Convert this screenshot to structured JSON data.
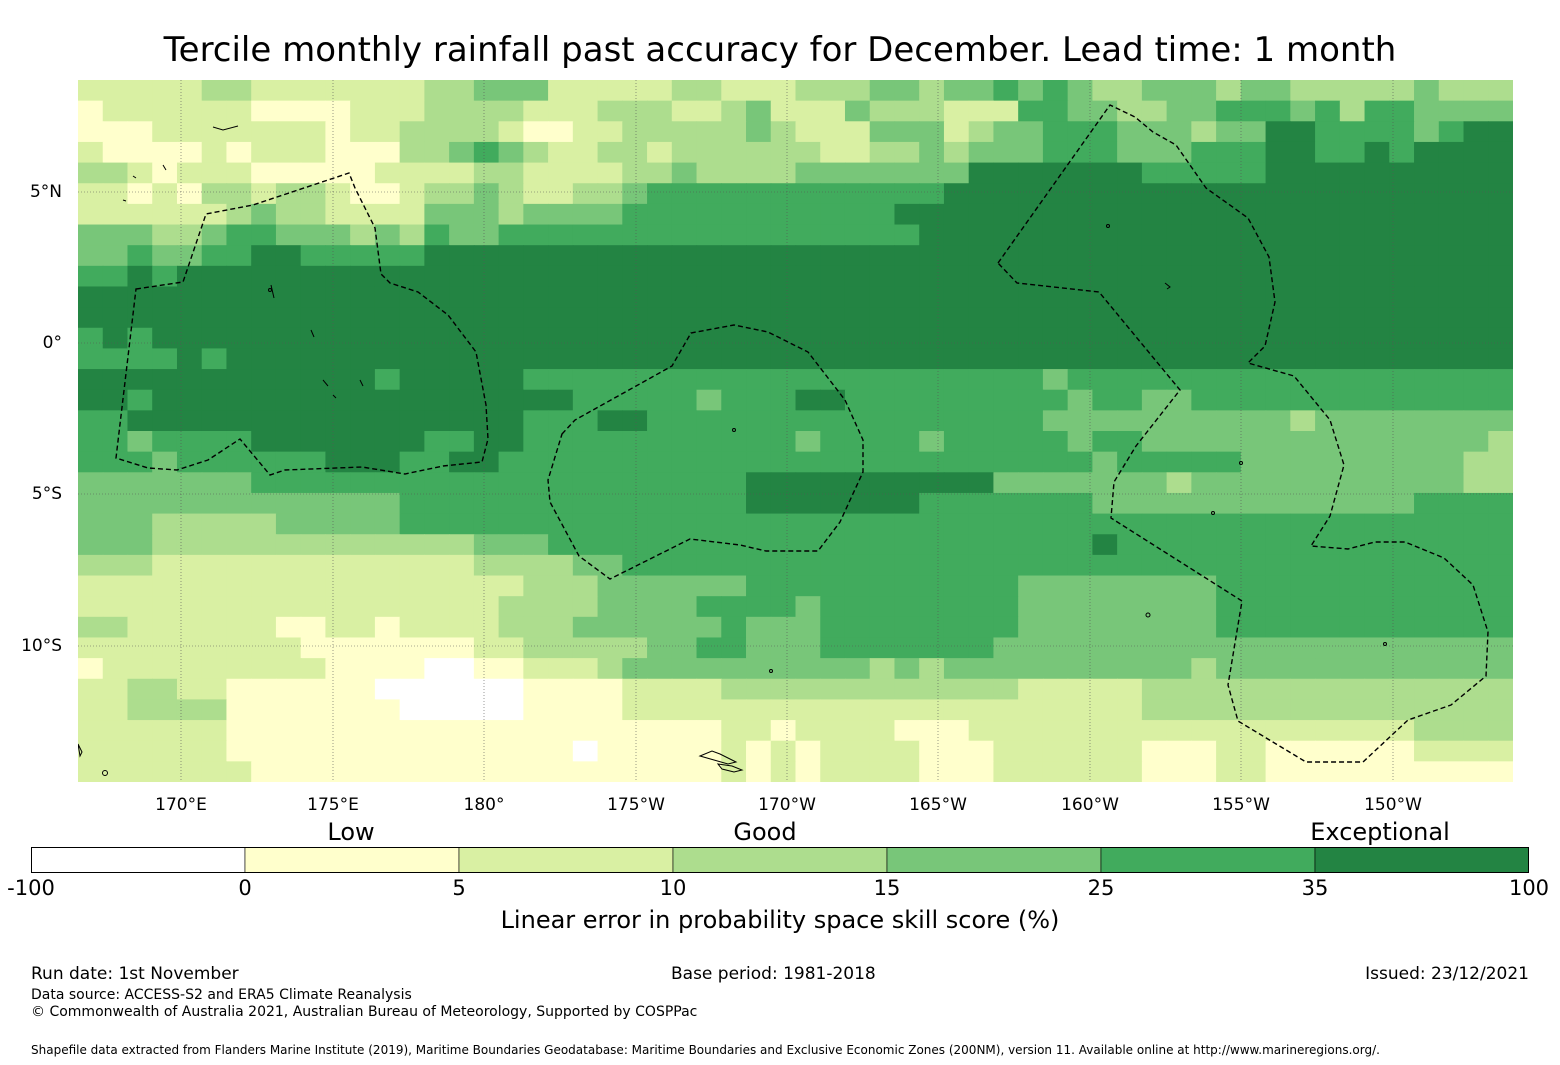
{
  "title": "Tercile monthly rainfall past accuracy for December. Lead time: 1 month",
  "map": {
    "lat_labels": [
      "5°N",
      "0°",
      "5°S",
      "10°S"
    ],
    "lon_labels": [
      "170°E",
      "175°E",
      "180°",
      "175°W",
      "170°W",
      "165°W",
      "160°W",
      "155°W",
      "150°W"
    ],
    "latitude_range": [
      -14.5,
      8.7
    ],
    "longitude_range_degrees_east": [
      166.6,
      214.0
    ],
    "skill_field": {
      "cell_size_degrees": 0.833,
      "rows_north_to_south": [
        "3333344333333344555333334433344455455656544555455444445444",
        "2333333222233344443334443345333544433366554455666564665555",
        "2223333333233444432233444445433355534556665554557766665677",
        "3222232333222445654334434444443344545556665556667766767777",
        "4432333222223333443333445444455555557777777666667777777777",
        "3323244344322344543344566666666666677777777777777777777777",
        "3333334544333355545555666666666667777777777777777777777777",
        "5554456655545465566666666666666666777777777777777777777777",
        "5565566776666677777777777777777777777777777777777777777777",
        "6676777777777777777777777777777777777777777777777777777777",
        "7777777777777777777777777777777777777777777777777777777777",
        "7777777777777777777777777777777777777777777777777777777777",
        "6767777777777777777777777777777777777777777777777777777777",
        "6666767777777777777777777777777777777777777777777777777777",
        "7777777777776777776666666666666666666665666666666666666666",
        "7767777777777777777766666566677666666666566556666666666666",
        "6677777777777777776667766666666666666665555555555455555555",
        "6656666777777766776666666666656666566666566555555555555554",
        "6665666666777667766666666666666666666666656666655555555544",
        "5555555666666666666666666667777777777555555545555555555544",
        "5555555555555666666666666667777777666666655555555555556666",
        "5554444455555666666666666666666666666666666666666666666666",
        "5554444444444444555666666666666666666666676666666666666666",
        "4443333333333333444455666666666666666666666666666666666666",
        "3333333333333333334445555556666666666655555555666666666666",
        "3333333333333333344445555666656666666655555555666666666666",
        "4433333322332333344455555565556666666655555555666666666666",
        "3333333332222222334444455665556666666555555555555555555555",
        "2333333333222211223334555555555545455555555554555555555555",
        "3344332222221111112222333344444444444433333444444444444444",
        "3344442222222111112222333333333333333333333444444444444444",
        "3333332222222222222222222233233332223333333333333333334444",
        "3333332222222222222212222232323333222333333222332222223333",
        "3333333222222222222222222232323333222333333222332222222222"
      ],
      "note": "digits index legend.bins: 1=-100..0, 2=0..5, 3=5..10, 4=10..15, 5=15..25, 6=25..35, 7=35..100"
    }
  },
  "legend": {
    "category_labels": [
      "Low",
      "Good",
      "Exceptional"
    ],
    "ticks": [
      "-100",
      "0",
      "5",
      "10",
      "15",
      "25",
      "35",
      "100"
    ],
    "bins": [
      {
        "from": -100,
        "to": 0,
        "color": "#ffffff"
      },
      {
        "from": 0,
        "to": 5,
        "color": "#ffffcc"
      },
      {
        "from": 5,
        "to": 10,
        "color": "#d9f0a3"
      },
      {
        "from": 10,
        "to": 15,
        "color": "#addd8e"
      },
      {
        "from": 15,
        "to": 25,
        "color": "#78c679"
      },
      {
        "from": 25,
        "to": 35,
        "color": "#41ab5d"
      },
      {
        "from": 35,
        "to": 100,
        "color": "#238443"
      }
    ],
    "title": "Linear error in probability space skill score (%)"
  },
  "footer": {
    "run_date": "Run date: 1st November",
    "base_period": "Base period: 1981-2018",
    "issued": "Issued: 23/12/2021",
    "data_source": "Data source: ACCESS-S2 and ERA5 Climate Reanalysis",
    "copyright": "© Commonwealth of Australia 2021, Australian Bureau of Meteorology, Supported by COSPPac",
    "shapefile": "Shapefile data extracted from Flanders Marine Institute (2019), Maritime Boundaries Geodatabase: Maritime Boundaries and Exclusive Economic Zones (200NM), version 11. Available online at http://www.marineregions.org/."
  }
}
